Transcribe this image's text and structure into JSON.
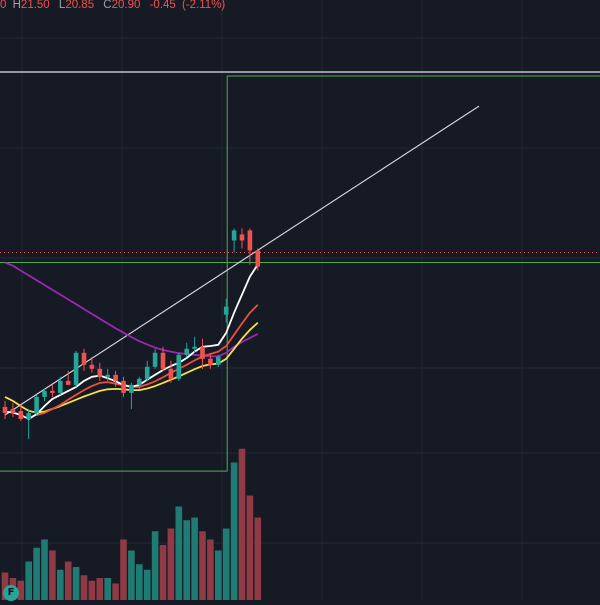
{
  "legend": {
    "open_fragment": "0",
    "high_label": "H",
    "high": "21.50",
    "low_label": "L",
    "low": "20.85",
    "close_label": "C",
    "close": "20.90",
    "change": "-0.45",
    "change_pct": "(-2.11%)"
  },
  "badge": {
    "label": "F"
  },
  "colors": {
    "background": "#161a25",
    "grid": "#232836",
    "up": "#26a69a",
    "down": "#ef5350",
    "volume_up": "#1f7c74",
    "volume_down": "#8f3a44",
    "ma_fast": "#ffffff",
    "ma_mid": "#e8503c",
    "ma_slow": "#f3e04a",
    "ma_long": "#9c27b0",
    "drawing_green": "#4caf50",
    "trend_line": "#d1d4dc",
    "price_line": "#ef5350"
  },
  "chart_data": {
    "type": "candlestick",
    "candles": [
      {
        "o": 19.6,
        "h": 19.75,
        "l": 19.3,
        "c": 19.45
      },
      {
        "o": 19.55,
        "h": 19.7,
        "l": 19.35,
        "c": 19.45
      },
      {
        "o": 19.5,
        "h": 19.65,
        "l": 19.25,
        "c": 19.3
      },
      {
        "o": 19.3,
        "h": 19.55,
        "l": 18.8,
        "c": 19.45
      },
      {
        "o": 19.45,
        "h": 19.9,
        "l": 19.4,
        "c": 19.85
      },
      {
        "o": 19.85,
        "h": 20.05,
        "l": 19.75,
        "c": 20.0
      },
      {
        "o": 20.0,
        "h": 20.15,
        "l": 19.85,
        "c": 19.95
      },
      {
        "o": 19.95,
        "h": 20.35,
        "l": 19.9,
        "c": 20.25
      },
      {
        "o": 20.25,
        "h": 20.5,
        "l": 20.2,
        "c": 20.15
      },
      {
        "o": 20.15,
        "h": 21.0,
        "l": 20.1,
        "c": 20.95
      },
      {
        "o": 20.95,
        "h": 21.05,
        "l": 20.5,
        "c": 20.65
      },
      {
        "o": 20.65,
        "h": 20.85,
        "l": 20.45,
        "c": 20.55
      },
      {
        "o": 20.55,
        "h": 20.7,
        "l": 20.25,
        "c": 20.35
      },
      {
        "o": 20.35,
        "h": 20.55,
        "l": 20.25,
        "c": 20.4
      },
      {
        "o": 20.4,
        "h": 20.5,
        "l": 20.1,
        "c": 20.25
      },
      {
        "o": 20.25,
        "h": 20.35,
        "l": 19.85,
        "c": 19.95
      },
      {
        "o": 19.95,
        "h": 20.2,
        "l": 19.55,
        "c": 20.15
      },
      {
        "o": 20.15,
        "h": 20.35,
        "l": 20.05,
        "c": 20.3
      },
      {
        "o": 20.3,
        "h": 20.75,
        "l": 20.25,
        "c": 20.6
      },
      {
        "o": 20.6,
        "h": 21.05,
        "l": 20.55,
        "c": 20.95
      },
      {
        "o": 20.95,
        "h": 21.1,
        "l": 20.5,
        "c": 20.55
      },
      {
        "o": 20.55,
        "h": 20.75,
        "l": 20.2,
        "c": 20.3
      },
      {
        "o": 20.3,
        "h": 20.95,
        "l": 20.25,
        "c": 20.9
      },
      {
        "o": 20.9,
        "h": 21.2,
        "l": 20.85,
        "c": 21.05
      },
      {
        "o": 21.05,
        "h": 21.35,
        "l": 20.95,
        "c": 21.1
      },
      {
        "o": 21.1,
        "h": 21.3,
        "l": 20.55,
        "c": 20.8
      },
      {
        "o": 20.8,
        "h": 20.95,
        "l": 20.55,
        "c": 20.65
      },
      {
        "o": 20.65,
        "h": 20.9,
        "l": 20.6,
        "c": 20.85
      },
      {
        "o": 21.9,
        "h": 22.3,
        "l": 21.7,
        "c": 22.1
      },
      {
        "o": 23.75,
        "h": 24.05,
        "l": 23.45,
        "c": 24.0
      },
      {
        "o": 23.9,
        "h": 24.05,
        "l": 23.55,
        "c": 23.75
      },
      {
        "o": 24.0,
        "h": 24.05,
        "l": 23.15,
        "c": 23.5
      },
      {
        "o": 23.5,
        "h": 23.55,
        "l": 23.0,
        "c": 23.1
      }
    ],
    "volume": [
      10,
      8,
      7,
      14,
      19,
      22,
      18,
      11,
      14,
      12,
      9,
      7,
      8,
      8,
      6,
      22,
      18,
      13,
      11,
      25,
      20,
      26,
      34,
      29,
      30,
      25,
      22,
      18,
      26,
      50,
      55,
      38,
      30
    ],
    "ma_fast": [
      19.48,
      19.46,
      19.4,
      19.3,
      19.42,
      19.62,
      19.8,
      19.9,
      20.0,
      20.1,
      20.25,
      20.35,
      20.38,
      20.32,
      20.24,
      20.15,
      20.1,
      20.15,
      20.28,
      20.4,
      20.52,
      20.62,
      20.7,
      20.82,
      20.98,
      21.1,
      21.12,
      21.15,
      21.45,
      21.95,
      22.4,
      22.85,
      23.15
    ],
    "ma_mid": [
      null,
      null,
      null,
      null,
      19.4,
      19.45,
      19.55,
      19.65,
      19.78,
      19.9,
      20.02,
      20.12,
      20.2,
      20.22,
      20.18,
      20.14,
      20.1,
      20.1,
      20.16,
      20.24,
      20.34,
      20.45,
      20.55,
      20.65,
      20.76,
      20.86,
      20.92,
      20.98,
      21.12,
      21.4,
      21.68,
      21.95,
      22.15
    ],
    "ma_slow": [
      19.85,
      19.75,
      19.62,
      19.5,
      19.46,
      19.48,
      19.55,
      19.62,
      19.7,
      19.78,
      19.86,
      19.93,
      20.0,
      20.04,
      20.05,
      20.04,
      20.02,
      20.02,
      20.06,
      20.12,
      20.2,
      20.28,
      20.36,
      20.45,
      20.54,
      20.62,
      20.66,
      20.68,
      20.8,
      21.05,
      21.3,
      21.52,
      21.7
    ],
    "ma_long": [
      23.2,
      23.12,
      23.0,
      22.88,
      22.76,
      22.64,
      22.52,
      22.4,
      22.28,
      22.16,
      22.04,
      21.92,
      21.8,
      21.68,
      21.56,
      21.45,
      21.34,
      21.24,
      21.16,
      21.08,
      21.02,
      20.98,
      20.94,
      20.92,
      20.9,
      20.88,
      20.86,
      20.86,
      20.95,
      21.1,
      21.22,
      21.32,
      21.42
    ],
    "drawings": {
      "horizontal_line_price": 27.95,
      "box_upper": {
        "top": 27.85,
        "bottom": 23.2,
        "start_candle": 28,
        "end": "right-edge"
      },
      "box_lower": {
        "top": 23.2,
        "bottom": 18.0,
        "start": "left-edge",
        "end_candle": 28
      },
      "trend_line": {
        "from_candle": 0,
        "from_price": 19.4,
        "to_candle": 60,
        "to_price": 27.1
      },
      "last_price": 23.45
    },
    "grid": true
  }
}
